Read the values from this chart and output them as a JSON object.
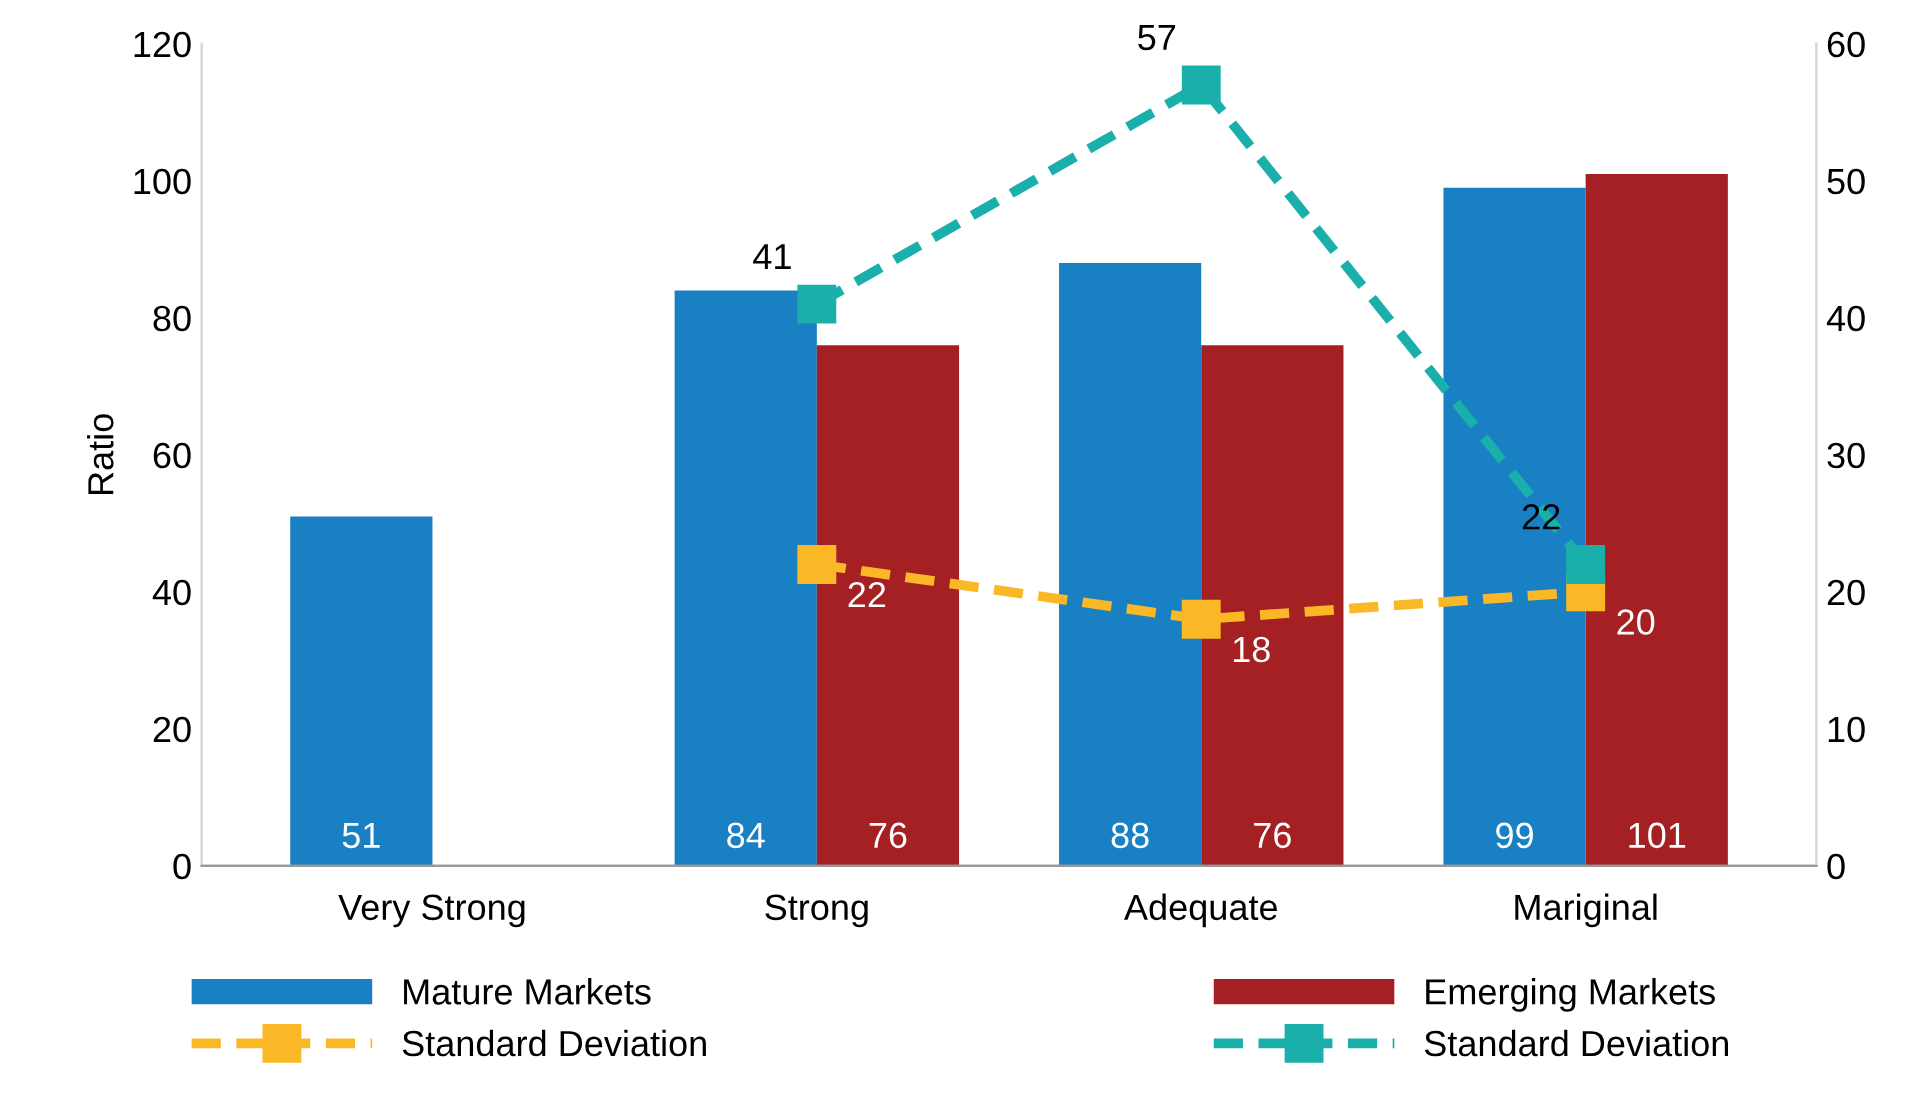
{
  "chart_data": {
    "type": "bar",
    "ylabel": "Ratio",
    "categories": [
      "Very Strong",
      "Strong",
      "Adequate",
      "Mariginal"
    ],
    "series": [
      {
        "name": "Mature Markets",
        "color": "#1a80c4",
        "values": [
          51,
          84,
          88,
          99
        ]
      },
      {
        "name": "Emerging Markets",
        "color": "#a52022",
        "values": [
          null,
          76,
          76,
          101
        ]
      },
      {
        "name": "Standard Deviation",
        "type": "line",
        "axis": "y2",
        "color": "#fbb826",
        "values": [
          null,
          22,
          18,
          20
        ]
      },
      {
        "name": "Standard Deviation",
        "type": "line",
        "axis": "y2",
        "color": "#1aafaa",
        "values": [
          null,
          41,
          57,
          22
        ]
      }
    ],
    "ylim": [
      0,
      120
    ],
    "yticks": [
      0,
      20,
      40,
      60,
      80,
      100,
      120
    ],
    "y2lim": [
      0,
      60
    ],
    "y2ticks": [
      0,
      10,
      20,
      30,
      40,
      50,
      60
    ],
    "data_labels": true,
    "marker": "square",
    "line_style": "dashed",
    "legend": "bottom",
    "grid": false
  }
}
